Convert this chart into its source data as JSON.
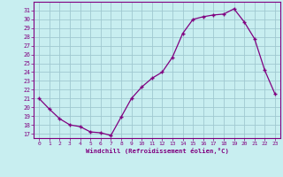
{
  "x": [
    0,
    1,
    2,
    3,
    4,
    5,
    6,
    7,
    8,
    9,
    10,
    11,
    12,
    13,
    14,
    15,
    16,
    17,
    18,
    19,
    20,
    21,
    22,
    23
  ],
  "y": [
    21.0,
    19.8,
    18.7,
    18.0,
    17.8,
    17.2,
    17.1,
    16.8,
    18.9,
    21.0,
    22.3,
    23.3,
    24.0,
    25.7,
    28.4,
    30.0,
    30.3,
    30.5,
    30.6,
    31.2,
    29.7,
    27.8,
    24.2,
    21.5
  ],
  "line_color": "#800080",
  "marker_color": "#800080",
  "bg_color": "#c8eef0",
  "grid_color": "#a0c8d0",
  "xlabel": "Windchill (Refroidissement éolien,°C)",
  "ylabel": "",
  "ylim": [
    16.5,
    32.0
  ],
  "xlim": [
    -0.5,
    23.5
  ],
  "yticks": [
    17,
    18,
    19,
    20,
    21,
    22,
    23,
    24,
    25,
    26,
    27,
    28,
    29,
    30,
    31
  ],
  "xticks": [
    0,
    1,
    2,
    3,
    4,
    5,
    6,
    7,
    8,
    9,
    10,
    11,
    12,
    13,
    14,
    15,
    16,
    17,
    18,
    19,
    20,
    21,
    22,
    23
  ],
  "axis_color": "#800080",
  "tick_color": "#800080",
  "border_color": "#800080"
}
